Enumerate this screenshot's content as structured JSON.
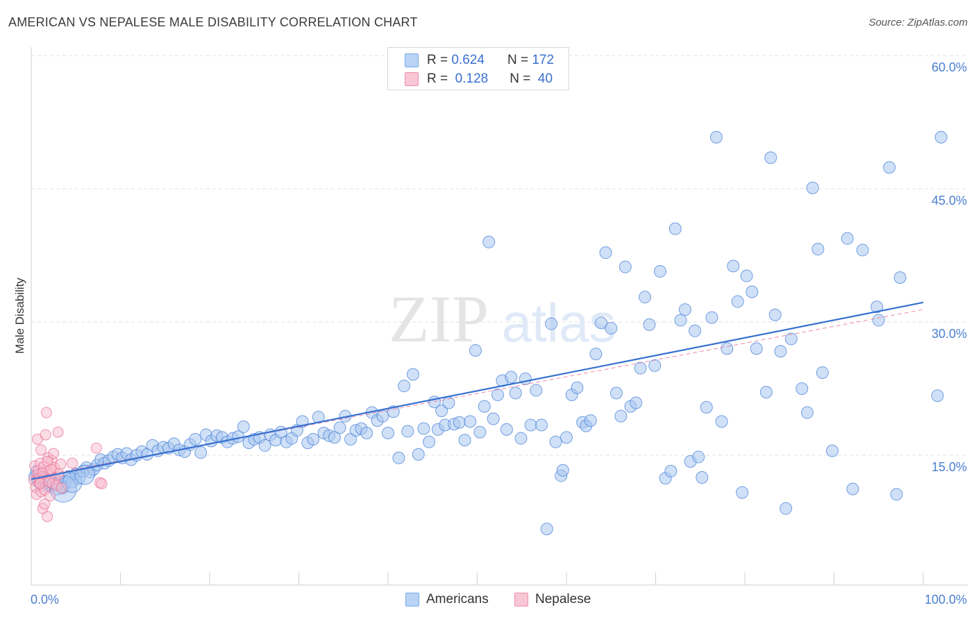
{
  "title": "AMERICAN VS NEPALESE MALE DISABILITY CORRELATION CHART",
  "source": "Source: ZipAtlas.com",
  "watermark": {
    "zip": "ZIP",
    "atlas": "atlas"
  },
  "legend": {
    "rows": [
      {
        "r_label": "R =",
        "r_value": "0.624",
        "n_label": "N =",
        "n_value": "172",
        "color": "#7aaae8",
        "fill": "#b9d3f5"
      },
      {
        "r_label": "R =",
        "r_value": "0.128",
        "n_label": "N =",
        "n_value": "40",
        "color": "#ee8eac",
        "fill": "#f8c6d5"
      }
    ]
  },
  "bottom_legend": [
    {
      "label": "Americans",
      "color": "#7aaae8",
      "fill": "#b9d3f5"
    },
    {
      "label": "Nepalese",
      "color": "#ee8eac",
      "fill": "#f8c6d5"
    }
  ],
  "chart_data": {
    "type": "scatter",
    "title": "AMERICAN VS NEPALESE MALE DISABILITY CORRELATION CHART",
    "xlabel": "",
    "ylabel": "Male Disability",
    "xlim": [
      0,
      100
    ],
    "ylim": [
      0,
      60
    ],
    "x_tick_labels": [
      "0.0%",
      "100.0%"
    ],
    "y_ticks": [
      15,
      30,
      45,
      60
    ],
    "y_tick_labels": [
      "15.0%",
      "30.0%",
      "45.0%",
      "60.0%"
    ],
    "grid": true,
    "series": [
      {
        "name": "Americans",
        "color": "#4a80d8",
        "fill": "#a9c8f0",
        "trend": {
          "x": [
            0,
            100
          ],
          "y": [
            12.3,
            32.2
          ]
        },
        "points": [
          [
            0.4,
            12.6
          ],
          [
            0.6,
            13.2
          ],
          [
            0.8,
            12.0
          ],
          [
            1.0,
            12.8
          ],
          [
            1.2,
            11.6
          ],
          [
            1.4,
            12.4
          ],
          [
            1.6,
            11.9
          ],
          [
            1.9,
            12.2
          ],
          [
            2.1,
            11.5
          ],
          [
            2.4,
            11.8
          ],
          [
            2.7,
            12.1
          ],
          [
            3.0,
            11.7
          ],
          [
            3.3,
            12.3
          ],
          [
            3.6,
            11.4
          ],
          [
            3.9,
            11.9
          ],
          [
            4.2,
            12.6
          ],
          [
            4.6,
            12.0
          ],
          [
            5.0,
            12.9
          ],
          [
            5.4,
            12.4
          ],
          [
            5.8,
            13.2
          ],
          [
            6.2,
            13.6
          ],
          [
            6.6,
            13.1
          ],
          [
            7.0,
            13.4
          ],
          [
            7.4,
            13.9
          ],
          [
            7.8,
            14.5
          ],
          [
            8.2,
            14.1
          ],
          [
            8.7,
            14.4
          ],
          [
            9.2,
            14.8
          ],
          [
            9.7,
            15.1
          ],
          [
            10.2,
            14.7
          ],
          [
            10.7,
            15.2
          ],
          [
            11.2,
            14.5
          ],
          [
            11.8,
            15.0
          ],
          [
            12.4,
            15.4
          ],
          [
            13.0,
            15.1
          ],
          [
            13.6,
            16.1
          ],
          [
            14.2,
            15.5
          ],
          [
            14.8,
            15.9
          ],
          [
            15.4,
            15.8
          ],
          [
            16.0,
            16.3
          ],
          [
            16.6,
            15.6
          ],
          [
            17.2,
            15.4
          ],
          [
            17.8,
            16.2
          ],
          [
            18.4,
            16.8
          ],
          [
            19.0,
            15.3
          ],
          [
            19.6,
            17.3
          ],
          [
            20.2,
            16.6
          ],
          [
            20.8,
            17.2
          ],
          [
            21.4,
            17.0
          ],
          [
            22.0,
            16.5
          ],
          [
            22.6,
            16.9
          ],
          [
            23.2,
            17.1
          ],
          [
            23.8,
            18.2
          ],
          [
            24.4,
            16.4
          ],
          [
            25.0,
            16.8
          ],
          [
            25.6,
            17.0
          ],
          [
            26.2,
            16.1
          ],
          [
            26.8,
            17.3
          ],
          [
            27.4,
            16.7
          ],
          [
            28.0,
            17.6
          ],
          [
            28.6,
            16.5
          ],
          [
            29.2,
            16.9
          ],
          [
            29.8,
            17.8
          ],
          [
            30.4,
            18.8
          ],
          [
            31.0,
            16.4
          ],
          [
            31.6,
            16.8
          ],
          [
            32.2,
            19.3
          ],
          [
            32.8,
            17.5
          ],
          [
            33.4,
            17.2
          ],
          [
            34.0,
            17.0
          ],
          [
            34.6,
            18.1
          ],
          [
            35.2,
            19.4
          ],
          [
            35.8,
            16.8
          ],
          [
            36.4,
            17.8
          ],
          [
            37.0,
            18.0
          ],
          [
            37.6,
            17.5
          ],
          [
            38.2,
            19.8
          ],
          [
            38.8,
            18.9
          ],
          [
            39.4,
            19.4
          ],
          [
            40.0,
            17.5
          ],
          [
            40.6,
            19.9
          ],
          [
            41.2,
            14.7
          ],
          [
            41.8,
            22.8
          ],
          [
            42.2,
            17.7
          ],
          [
            42.8,
            24.1
          ],
          [
            43.4,
            15.1
          ],
          [
            44.0,
            18.0
          ],
          [
            44.6,
            16.5
          ],
          [
            45.2,
            21.0
          ],
          [
            45.6,
            17.9
          ],
          [
            46.0,
            20.0
          ],
          [
            46.4,
            18.4
          ],
          [
            46.8,
            20.9
          ],
          [
            47.4,
            18.5
          ],
          [
            48.0,
            18.7
          ],
          [
            48.6,
            16.7
          ],
          [
            49.2,
            18.8
          ],
          [
            49.8,
            26.8
          ],
          [
            50.3,
            17.6
          ],
          [
            50.8,
            20.5
          ],
          [
            51.3,
            39.0
          ],
          [
            51.8,
            19.1
          ],
          [
            52.3,
            21.8
          ],
          [
            52.8,
            23.4
          ],
          [
            53.3,
            17.9
          ],
          [
            53.8,
            23.8
          ],
          [
            54.3,
            22.0
          ],
          [
            54.9,
            16.9
          ],
          [
            55.4,
            23.6
          ],
          [
            56.0,
            18.4
          ],
          [
            56.6,
            22.3
          ],
          [
            57.2,
            18.4
          ],
          [
            57.8,
            6.7
          ],
          [
            58.3,
            29.8
          ],
          [
            58.8,
            16.5
          ],
          [
            59.4,
            12.7
          ],
          [
            59.6,
            13.3
          ],
          [
            60.0,
            17.0
          ],
          [
            60.6,
            21.8
          ],
          [
            61.2,
            22.6
          ],
          [
            61.8,
            18.7
          ],
          [
            62.2,
            18.3
          ],
          [
            62.7,
            18.9
          ],
          [
            63.3,
            26.4
          ],
          [
            63.9,
            29.9
          ],
          [
            64.4,
            37.8
          ],
          [
            65.0,
            29.3
          ],
          [
            65.6,
            22.0
          ],
          [
            66.1,
            19.4
          ],
          [
            66.6,
            36.2
          ],
          [
            67.2,
            20.5
          ],
          [
            67.8,
            20.9
          ],
          [
            68.3,
            24.8
          ],
          [
            68.8,
            32.8
          ],
          [
            69.3,
            29.7
          ],
          [
            69.9,
            25.1
          ],
          [
            70.5,
            35.7
          ],
          [
            71.1,
            12.4
          ],
          [
            71.7,
            13.2
          ],
          [
            72.2,
            40.5
          ],
          [
            72.8,
            30.2
          ],
          [
            73.3,
            31.4
          ],
          [
            73.9,
            14.3
          ],
          [
            74.4,
            29.0
          ],
          [
            74.8,
            14.8
          ],
          [
            75.2,
            12.5
          ],
          [
            75.7,
            20.4
          ],
          [
            76.3,
            30.5
          ],
          [
            76.8,
            50.8
          ],
          [
            77.4,
            18.8
          ],
          [
            78.0,
            27.0
          ],
          [
            78.7,
            36.3
          ],
          [
            79.2,
            32.3
          ],
          [
            79.7,
            10.8
          ],
          [
            80.2,
            35.2
          ],
          [
            80.8,
            33.4
          ],
          [
            81.3,
            27.0
          ],
          [
            82.4,
            22.1
          ],
          [
            82.9,
            48.5
          ],
          [
            83.4,
            30.8
          ],
          [
            84.0,
            26.7
          ],
          [
            84.6,
            9.0
          ],
          [
            85.2,
            28.1
          ],
          [
            86.4,
            22.5
          ],
          [
            87.0,
            19.8
          ],
          [
            87.6,
            45.1
          ],
          [
            88.2,
            38.2
          ],
          [
            88.7,
            24.3
          ],
          [
            89.8,
            15.5
          ],
          [
            91.5,
            39.4
          ],
          [
            92.1,
            11.2
          ],
          [
            93.2,
            38.1
          ],
          [
            94.8,
            31.7
          ],
          [
            95.0,
            30.2
          ],
          [
            96.2,
            47.4
          ],
          [
            97.0,
            10.6
          ],
          [
            97.4,
            35.0
          ],
          [
            101.6,
            21.7
          ],
          [
            102.0,
            50.8
          ],
          [
            3.5,
            11.3
          ]
        ],
        "big_points": [
          [
            2.8,
            11.6
          ],
          [
            3.6,
            11.2
          ],
          [
            4.6,
            11.9
          ],
          [
            6.0,
            12.8
          ]
        ]
      },
      {
        "name": "Nepalese",
        "color": "#e86b93",
        "fill": "#f7bccd",
        "trend": {
          "x": [
            0,
            100
          ],
          "y": [
            12.5,
            31.4
          ]
        },
        "points": [
          [
            0.3,
            12.2
          ],
          [
            0.4,
            13.8
          ],
          [
            0.5,
            11.4
          ],
          [
            0.6,
            10.6
          ],
          [
            0.7,
            12.8
          ],
          [
            0.7,
            16.8
          ],
          [
            0.8,
            13.3
          ],
          [
            0.9,
            11.9
          ],
          [
            1.0,
            14.1
          ],
          [
            1.1,
            10.9
          ],
          [
            1.2,
            12.6
          ],
          [
            1.3,
            9.0
          ],
          [
            1.4,
            13.7
          ],
          [
            1.5,
            11.1
          ],
          [
            1.6,
            17.3
          ],
          [
            1.7,
            12.2
          ],
          [
            1.7,
            19.8
          ],
          [
            1.8,
            8.1
          ],
          [
            1.9,
            14.7
          ],
          [
            2.0,
            13.2
          ],
          [
            2.1,
            10.4
          ],
          [
            2.2,
            12.9
          ],
          [
            2.3,
            14.4
          ],
          [
            2.4,
            11.8
          ],
          [
            2.5,
            15.2
          ],
          [
            2.6,
            13.6
          ],
          [
            2.7,
            12.4
          ],
          [
            2.8,
            11.6
          ],
          [
            3.0,
            17.6
          ],
          [
            3.1,
            12.9
          ],
          [
            3.3,
            14.0
          ],
          [
            3.4,
            11.3
          ],
          [
            0.9,
            12.4
          ],
          [
            1.0,
            11.8
          ],
          [
            1.3,
            13.0
          ],
          [
            1.5,
            9.5
          ],
          [
            1.8,
            14.3
          ],
          [
            2.0,
            12.0
          ],
          [
            2.2,
            13.4
          ],
          [
            1.1,
            15.6
          ]
        ],
        "extra_points": [
          [
            7.3,
            15.8
          ],
          [
            7.7,
            11.9
          ],
          [
            7.9,
            11.8
          ],
          [
            4.6,
            14.1
          ]
        ]
      }
    ]
  }
}
